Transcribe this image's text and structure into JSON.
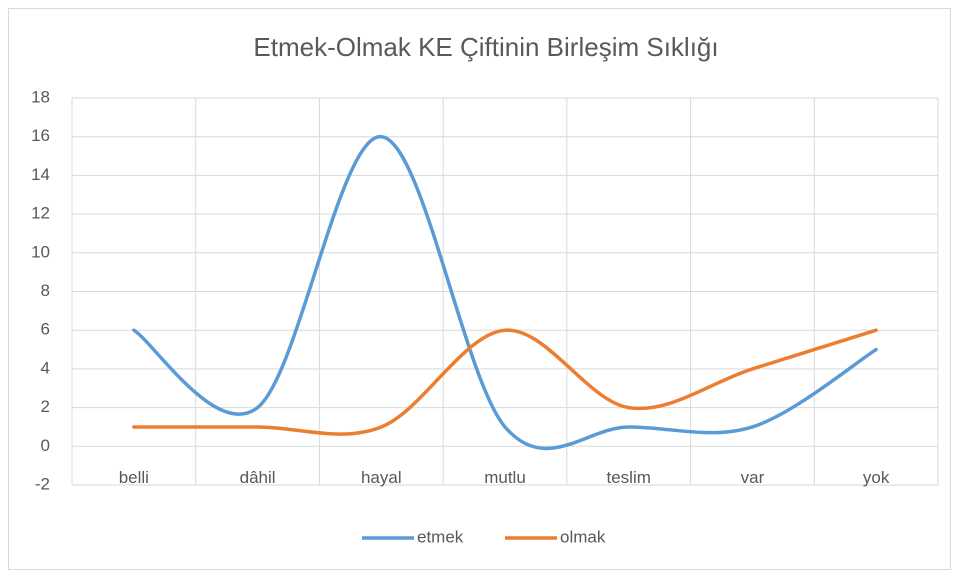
{
  "chart_data": {
    "type": "line",
    "title": "Etmek-Olmak KE Çiftinin Birleşim Sıklığı",
    "categories": [
      "belli",
      "dâhil",
      "hayal",
      "mutlu",
      "teslim",
      "var",
      "yok"
    ],
    "series": [
      {
        "name": "etmek",
        "color": "#5b9bd5",
        "values": [
          6,
          2,
          16,
          1,
          1,
          1,
          5
        ]
      },
      {
        "name": "olmak",
        "color": "#ed7d31",
        "values": [
          1,
          1,
          1,
          6,
          2,
          4,
          6
        ]
      }
    ],
    "ylim": [
      -2,
      18
    ],
    "yticks": [
      -2,
      0,
      2,
      4,
      6,
      8,
      10,
      12,
      14,
      16,
      18
    ],
    "grid": true,
    "smooth": true,
    "legend": "bottom"
  }
}
